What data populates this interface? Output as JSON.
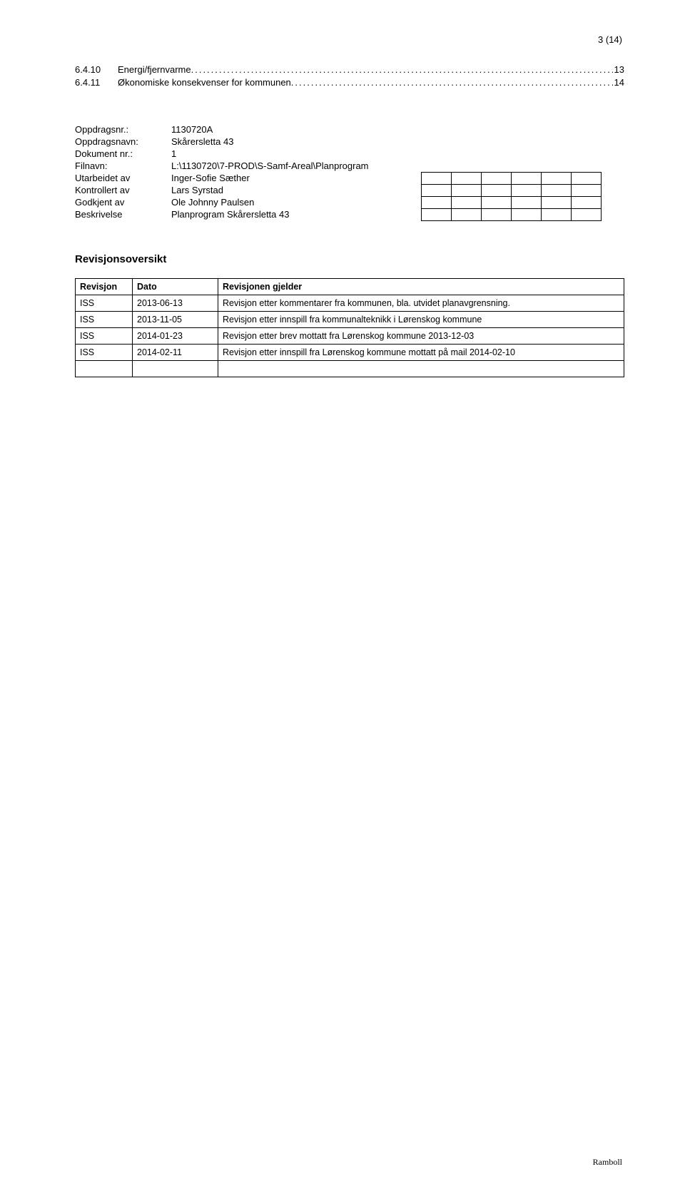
{
  "page_number": "3 (14)",
  "toc": [
    {
      "num": "6.4.10",
      "title": "Energi/fjernvarme",
      "page": "13"
    },
    {
      "num": "6.4.11",
      "title": "Økonomiske konsekvenser for kommunen",
      "page": "14"
    }
  ],
  "meta": {
    "labels": {
      "oppdragsnr": "Oppdragsnr.:",
      "oppdragsnavn": "Oppdragsnavn:",
      "dokument_nr": "Dokument nr.:",
      "filnavn": "Filnavn:",
      "utarbeidet": "Utarbeidet av",
      "kontrollert": "Kontrollert av",
      "godkjent": "Godkjent av",
      "beskrivelse": "Beskrivelse"
    },
    "values": {
      "oppdragsnr": "1130720A",
      "oppdragsnavn": "Skårersletta 43",
      "dokument_nr": "1",
      "filnavn": "L:\\1130720\\7-PROD\\S-Samf-Areal\\Planprogram",
      "utarbeidet": "Inger-Sofie Sæther",
      "kontrollert": "Lars Syrstad",
      "godkjent": "Ole Johnny Paulsen",
      "beskrivelse": "Planprogram Skårersletta 43"
    }
  },
  "revisjon_heading": "Revisjonsoversikt",
  "revisjon_columns": [
    "Revisjon",
    "Dato",
    "Revisjonen gjelder"
  ],
  "revisjon_rows": [
    [
      "ISS",
      "2013-06-13",
      "Revisjon etter kommentarer fra kommunen, bla. utvidet planavgrensning."
    ],
    [
      "ISS",
      "2013-11-05",
      "Revisjon etter innspill fra kommunalteknikk i Lørenskog kommune"
    ],
    [
      "ISS",
      "2014-01-23",
      "Revisjon etter brev mottatt fra Lørenskog kommune 2013-12-03"
    ],
    [
      "ISS",
      "2014-02-11",
      "Revisjon etter innspill fra Lørenskog kommune mottatt på mail 2014-02-10"
    ]
  ],
  "footer": "Ramboll"
}
